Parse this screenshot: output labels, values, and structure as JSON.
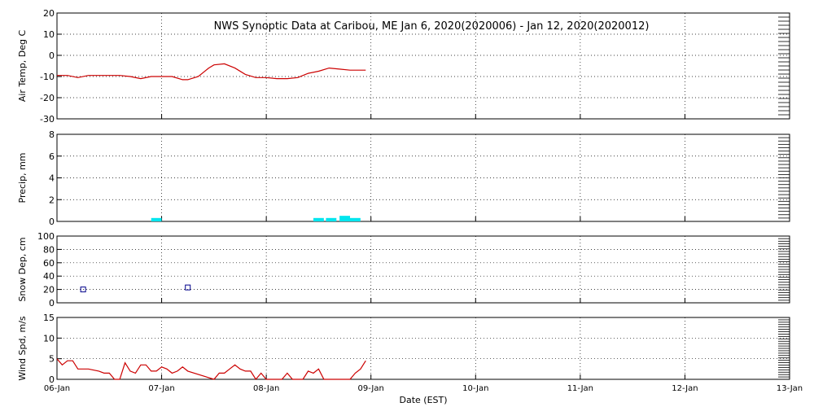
{
  "title": "NWS Synoptic Data at Caribou, ME   Jan  6, 2020(2020006) - Jan 12, 2020(2020012)",
  "xlabel": "Date (EST)",
  "x_ticks": [
    "06-Jan",
    "07-Jan",
    "08-Jan",
    "09-Jan",
    "10-Jan",
    "11-Jan",
    "12-Jan",
    "13-Jan"
  ],
  "chart_data": [
    {
      "type": "line",
      "ylabel": "Air Temp, Deg C",
      "ylim": [
        -30,
        20
      ],
      "yticks": [
        20,
        10,
        0,
        -10,
        -20,
        -30
      ],
      "xlim": [
        0,
        7
      ],
      "color": "#cc0000",
      "x": [
        0.0,
        0.1,
        0.2,
        0.3,
        0.4,
        0.5,
        0.6,
        0.7,
        0.8,
        0.9,
        1.0,
        1.1,
        1.2,
        1.25,
        1.35,
        1.45,
        1.5,
        1.6,
        1.7,
        1.8,
        1.9,
        2.0,
        2.1,
        2.2,
        2.3,
        2.4,
        2.5,
        2.6,
        2.7,
        2.8,
        2.95
      ],
      "values": [
        -9.5,
        -9.5,
        -10.5,
        -9.5,
        -9.5,
        -9.5,
        -9.5,
        -10,
        -11,
        -10,
        -10,
        -10,
        -11.5,
        -11.5,
        -10,
        -6,
        -4.5,
        -4,
        -6,
        -9,
        -10.5,
        -10.5,
        -11,
        -11,
        -10.5,
        -8.5,
        -7.5,
        -6,
        -6.5,
        -7,
        -7
      ]
    },
    {
      "type": "bar",
      "ylabel": "Precip, mm",
      "ylim": [
        0,
        8
      ],
      "yticks": [
        8,
        6,
        4,
        2,
        0
      ],
      "xlim": [
        0,
        7
      ],
      "color": "#00e5ee",
      "x": [
        0.95,
        2.5,
        2.62,
        2.75,
        2.85
      ],
      "values": [
        0.2,
        0.2,
        0.2,
        0.4,
        0.2
      ],
      "width": 0.1
    },
    {
      "type": "scatter",
      "ylabel": "Snow Dep, cm",
      "ylim": [
        0,
        100
      ],
      "yticks": [
        100,
        80,
        60,
        40,
        20,
        0
      ],
      "xlim": [
        0,
        7
      ],
      "color": "#00008b",
      "x": [
        0.25,
        1.25
      ],
      "values": [
        20,
        23
      ]
    },
    {
      "type": "line",
      "ylabel": "Wind Spd, m/s",
      "ylim": [
        0,
        15
      ],
      "yticks": [
        15,
        10,
        5,
        0
      ],
      "xlim": [
        0,
        7
      ],
      "color": "#cc0000",
      "x": [
        0.0,
        0.05,
        0.1,
        0.15,
        0.2,
        0.3,
        0.4,
        0.45,
        0.5,
        0.55,
        0.6,
        0.65,
        0.7,
        0.75,
        0.8,
        0.85,
        0.9,
        0.95,
        1.0,
        1.05,
        1.1,
        1.15,
        1.2,
        1.25,
        1.5,
        1.55,
        1.6,
        1.65,
        1.7,
        1.75,
        1.8,
        1.85,
        1.9,
        1.95,
        2.0,
        2.05,
        2.1,
        2.15,
        2.2,
        2.25,
        2.3,
        2.35,
        2.4,
        2.45,
        2.5,
        2.55,
        2.6,
        2.65,
        2.7,
        2.75,
        2.8,
        2.85,
        2.9,
        2.95
      ],
      "values": [
        5,
        3.5,
        4.5,
        4.5,
        2.5,
        2.5,
        2,
        1.5,
        1.5,
        0,
        0,
        4,
        2,
        1.5,
        3.5,
        3.5,
        2,
        2,
        3,
        2.5,
        1.5,
        2,
        3,
        2,
        0,
        1.5,
        1.5,
        2.5,
        3.5,
        2.5,
        2,
        2,
        0,
        1.5,
        0,
        0,
        0,
        0,
        1.5,
        0,
        0,
        0,
        2,
        1.5,
        2.5,
        0,
        0,
        0,
        0,
        0,
        0,
        1.5,
        2.5,
        4.5
      ]
    }
  ]
}
